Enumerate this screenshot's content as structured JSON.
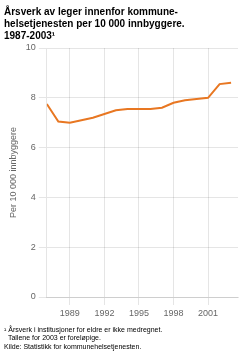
{
  "chart_data": {
    "type": "line",
    "title": [
      "Årsverk av leger innenfor kommune-",
      "helsetjenesten per 10 000 innbyggere.",
      "1987-2003¹"
    ],
    "ylabel": "Per 10 000 innbyggere",
    "annotations": [
      "¹ Årsverk i institusjoner for eldre er ikke medregnet.",
      "  Tallene for 2003 er foreløpige.",
      "Kilde: Statistikk for kommunehelsetjenesten."
    ],
    "x": [
      1987,
      1988,
      1989,
      1990,
      1991,
      1992,
      1993,
      1994,
      1995,
      1996,
      1997,
      1998,
      1999,
      2000,
      2001,
      2002,
      2003
    ],
    "values": [
      7.75,
      7.05,
      7.0,
      7.1,
      7.2,
      7.35,
      7.5,
      7.55,
      7.55,
      7.55,
      7.6,
      7.8,
      7.9,
      7.95,
      8.0,
      8.55,
      8.6
    ],
    "color": "#E87722",
    "xlim": [
      1987,
      2003.6
    ],
    "xticks": [
      1989,
      1992,
      1995,
      1998,
      2001
    ],
    "ylim": [
      0,
      10
    ],
    "yticks": [
      0,
      2,
      4,
      6,
      8,
      10
    ],
    "grid": true
  }
}
